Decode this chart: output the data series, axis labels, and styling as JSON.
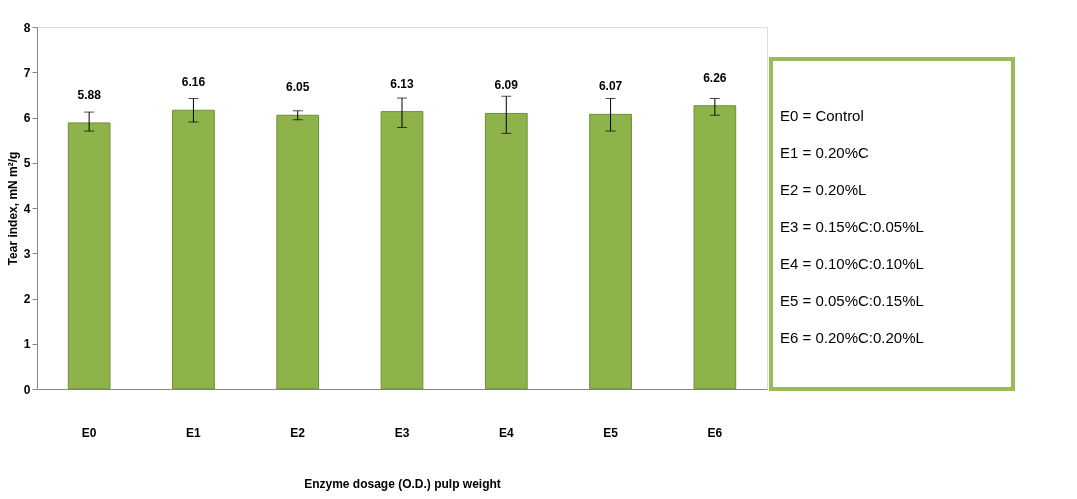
{
  "chart_data": {
    "type": "bar",
    "categories": [
      "E0",
      "E1",
      "E2",
      "E3",
      "E4",
      "E5",
      "E6"
    ],
    "values": [
      5.88,
      6.16,
      6.05,
      6.13,
      6.09,
      6.07,
      6.26
    ],
    "errors": [
      [
        5.7,
        6.12
      ],
      [
        5.9,
        6.42
      ],
      [
        5.95,
        6.15
      ],
      [
        5.78,
        6.43
      ],
      [
        5.65,
        6.47
      ],
      [
        5.7,
        6.42
      ],
      [
        6.05,
        6.42
      ]
    ],
    "color": "#8db34a",
    "data_labels": true,
    "xlabel": "Enzyme dosage (O.D.) pulp weight",
    "ylabel": "Tear index, mN m²/g",
    "ylim": [
      0,
      8
    ],
    "yticks": [
      0,
      1,
      2,
      3,
      4,
      5,
      6,
      7,
      8
    ],
    "grid": false,
    "annotations": [
      "E0 = Control",
      "E1 = 0.20%C",
      "E2 = 0.20%L",
      "E3 = 0.15%C:0.05%L",
      "E4 = 0.10%C:0.10%L",
      "E5 = 0.05%C:0.15%L",
      "E6 = 0.20%C:0.20%L"
    ]
  }
}
